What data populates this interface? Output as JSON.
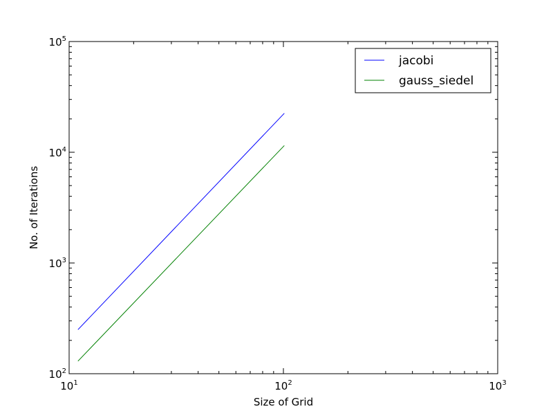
{
  "chart_data": {
    "type": "line",
    "title": "",
    "xlabel": "Size of Grid",
    "ylabel": "No. of Iterations",
    "xscale": "log",
    "yscale": "log",
    "xlim": [
      10,
      1000
    ],
    "ylim": [
      100,
      100000
    ],
    "x_ticks": [
      {
        "value": 10,
        "base": "10",
        "exp": "1"
      },
      {
        "value": 100,
        "base": "10",
        "exp": "2"
      },
      {
        "value": 1000,
        "base": "10",
        "exp": "3"
      }
    ],
    "y_ticks": [
      {
        "value": 100,
        "base": "10",
        "exp": "2"
      },
      {
        "value": 1000,
        "base": "10",
        "exp": "3"
      },
      {
        "value": 10000,
        "base": "10",
        "exp": "4"
      },
      {
        "value": 100000,
        "base": "10",
        "exp": "5"
      }
    ],
    "grid": false,
    "legend_position": "top-right",
    "series": [
      {
        "name": "jacobi",
        "color": "#0000ff",
        "x": [
          11,
          101
        ],
        "y": [
          250,
          22500
        ]
      },
      {
        "name": "gauss_siedel",
        "color": "#008000",
        "x": [
          11,
          101
        ],
        "y": [
          130,
          11500
        ]
      }
    ]
  }
}
